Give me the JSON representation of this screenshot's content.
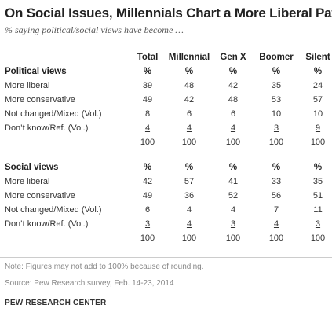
{
  "title": "On Social Issues, Millennials Chart a More Liberal Path",
  "subtitle": "% saying political/social views have become …",
  "columns": [
    "Total",
    "Millennial",
    "Gen X",
    "Boomer",
    "Silent"
  ],
  "unit": "%",
  "sections": [
    {
      "name": "Political views",
      "rows": [
        {
          "label": "More liberal",
          "values": [
            "39",
            "48",
            "42",
            "35",
            "24"
          ]
        },
        {
          "label": "More conservative",
          "values": [
            "49",
            "42",
            "48",
            "53",
            "57"
          ]
        },
        {
          "label": "Not changed/Mixed (Vol.)",
          "values": [
            "8",
            "6",
            "6",
            "10",
            "10"
          ]
        },
        {
          "label": "Don’t know/Ref. (Vol.)",
          "values": [
            "4",
            "4",
            "4",
            "3",
            "9"
          ]
        }
      ],
      "totals": [
        "100",
        "100",
        "100",
        "100",
        "100"
      ]
    },
    {
      "name": "Social views",
      "rows": [
        {
          "label": "More liberal",
          "values": [
            "42",
            "57",
            "41",
            "33",
            "35"
          ]
        },
        {
          "label": "More conservative",
          "values": [
            "49",
            "36",
            "52",
            "56",
            "51"
          ]
        },
        {
          "label": "Not changed/Mixed (Vol.)",
          "values": [
            "6",
            "4",
            "4",
            "7",
            "11"
          ]
        },
        {
          "label": "Don’t know/Ref. (Vol.)",
          "values": [
            "3",
            "4",
            "3",
            "4",
            "3"
          ]
        }
      ],
      "totals": [
        "100",
        "100",
        "100",
        "100",
        "100"
      ]
    }
  ],
  "note": "Note: Figures may not add to 100% because of rounding.",
  "source": "Source: Pew Research survey, Feb. 14-23, 2014",
  "brand": "PEW RESEARCH CENTER",
  "chart_data": {
    "type": "table",
    "title": "On Social Issues, Millennials Chart a More Liberal Path",
    "subtitle": "% saying political/social views have become …",
    "columns": [
      "Total",
      "Millennial",
      "Gen X",
      "Boomer",
      "Silent"
    ],
    "tables": [
      {
        "name": "Political views",
        "rows": [
          {
            "label": "More liberal",
            "values": [
              39,
              48,
              42,
              35,
              24
            ]
          },
          {
            "label": "More conservative",
            "values": [
              49,
              42,
              48,
              53,
              57
            ]
          },
          {
            "label": "Not changed/Mixed (Vol.)",
            "values": [
              8,
              6,
              6,
              10,
              10
            ]
          },
          {
            "label": "Don’t know/Ref. (Vol.)",
            "values": [
              4,
              4,
              4,
              3,
              9
            ]
          }
        ],
        "totals": [
          100,
          100,
          100,
          100,
          100
        ]
      },
      {
        "name": "Social views",
        "rows": [
          {
            "label": "More liberal",
            "values": [
              42,
              57,
              41,
              33,
              35
            ]
          },
          {
            "label": "More conservative",
            "values": [
              49,
              36,
              52,
              56,
              51
            ]
          },
          {
            "label": "Not changed/Mixed (Vol.)",
            "values": [
              6,
              4,
              4,
              7,
              11
            ]
          },
          {
            "label": "Don’t know/Ref. (Vol.)",
            "values": [
              3,
              4,
              3,
              4,
              3
            ]
          }
        ],
        "totals": [
          100,
          100,
          100,
          100,
          100
        ]
      }
    ]
  }
}
